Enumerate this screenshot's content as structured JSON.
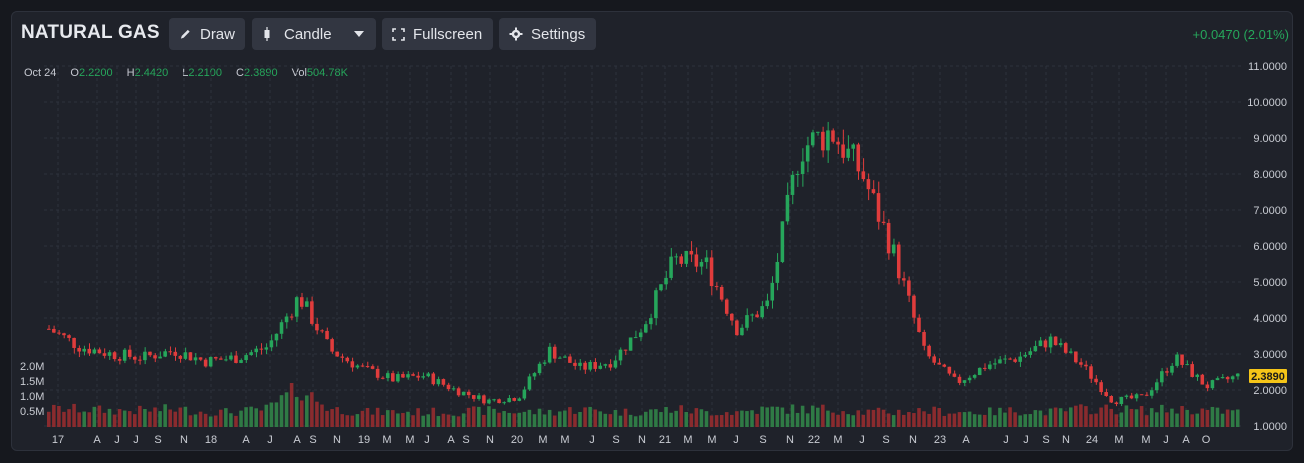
{
  "header": {
    "title": "NATURAL GAS",
    "draw_label": "Draw",
    "chart_type_label": "Candle",
    "fullscreen_label": "Fullscreen",
    "settings_label": "Settings",
    "change_text": "+0.0470 (2.01%)"
  },
  "ohlc": {
    "date": "Oct 24",
    "o_label": "O",
    "o_value": "2.2200",
    "h_label": "H",
    "h_value": "2.4420",
    "l_label": "L",
    "l_value": "2.2100",
    "c_label": "C",
    "c_value": "2.3890",
    "vol_label": "Vol",
    "vol_value": "504.78K"
  },
  "colors": {
    "up": "#26a65b",
    "down": "#e03c3c",
    "price_tag": "#f5c518",
    "grid": "#2e323c"
  },
  "chart_data": {
    "type": "candlestick",
    "title": "NATURAL GAS",
    "price_axis": {
      "ticks": [
        "11.0000",
        "10.0000",
        "9.0000",
        "8.0000",
        "7.0000",
        "6.0000",
        "5.0000",
        "4.0000",
        "3.0000",
        "2.0000",
        "1.0000"
      ],
      "ylim": [
        1.0,
        11.0
      ],
      "position": "right"
    },
    "volume_axis": {
      "ticks": [
        "2.0M",
        "1.5M",
        "1.0M",
        "0.5M"
      ],
      "position": "left"
    },
    "x_ticks": [
      "17",
      "A",
      "J",
      "J",
      "S",
      "N",
      "18",
      "A",
      "J",
      "A",
      "S",
      "N",
      "19",
      "M",
      "M",
      "J",
      "A",
      "S",
      "N",
      "20",
      "M",
      "M",
      "J",
      "S",
      "N",
      "21",
      "M",
      "M",
      "J",
      "S",
      "N",
      "22",
      "M",
      "J",
      "S",
      "N",
      "23",
      "A",
      "J",
      "J",
      "S",
      "N",
      "24",
      "M",
      "M",
      "J",
      "A",
      "O"
    ],
    "last_price": "2.3890",
    "grid": true,
    "close_series": {
      "dates": [
        "2017-01",
        "2017-04",
        "2017-07",
        "2017-10",
        "2018-01",
        "2018-04",
        "2018-07",
        "2018-10",
        "2018-11",
        "2019-01",
        "2019-04",
        "2019-07",
        "2019-10",
        "2020-01",
        "2020-04",
        "2020-07",
        "2020-10",
        "2021-01",
        "2021-04",
        "2021-07",
        "2021-09",
        "2021-10",
        "2021-12",
        "2022-02",
        "2022-05",
        "2022-08",
        "2022-09",
        "2022-11",
        "2023-01",
        "2023-04",
        "2023-07",
        "2023-10",
        "2023-11",
        "2024-01",
        "2024-02",
        "2024-04",
        "2024-06",
        "2024-08",
        "2024-10"
      ],
      "values": [
        3.7,
        3.2,
        3.0,
        2.9,
        3.1,
        2.8,
        2.9,
        3.2,
        4.6,
        3.1,
        2.6,
        2.3,
        2.4,
        2.0,
        1.7,
        1.8,
        3.1,
        2.6,
        2.8,
        3.8,
        5.6,
        5.5,
        3.7,
        4.4,
        8.7,
        9.2,
        8.0,
        5.8,
        3.0,
        2.2,
        2.7,
        2.9,
        3.4,
        2.7,
        1.7,
        1.8,
        2.9,
        2.1,
        2.39
      ]
    },
    "volume_series_millions": [
      0.6,
      0.6,
      0.55,
      0.55,
      0.6,
      0.5,
      0.5,
      0.6,
      1.3,
      0.6,
      0.5,
      0.5,
      0.5,
      0.5,
      0.55,
      0.5,
      0.5,
      0.6,
      0.5,
      0.5,
      0.6,
      0.5,
      0.5,
      0.6,
      0.6,
      0.6,
      0.5,
      0.5,
      0.55,
      0.5,
      0.5,
      0.55,
      0.5,
      0.6,
      0.6,
      0.55,
      0.6,
      0.55,
      0.5
    ]
  }
}
